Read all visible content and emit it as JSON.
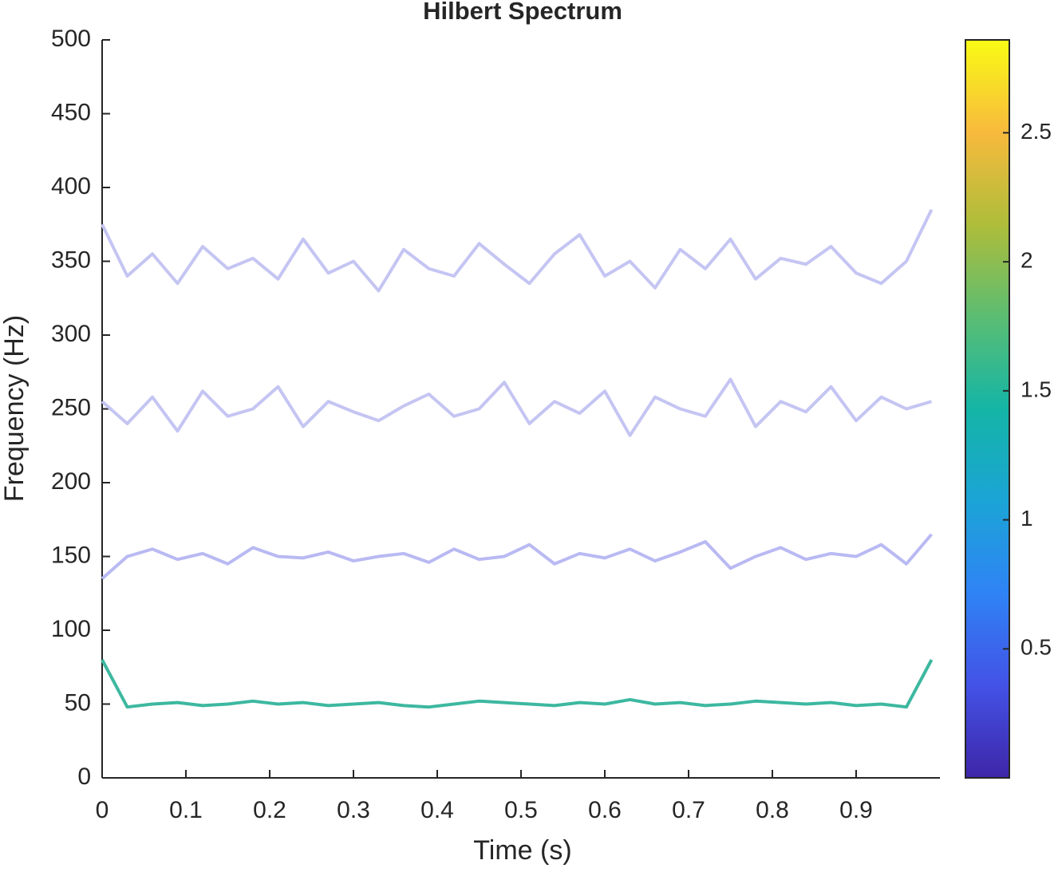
{
  "chart_data": {
    "type": "line",
    "title": "Hilbert Spectrum",
    "xlabel": "Time (s)",
    "ylabel": "Frequency (Hz)",
    "x": [
      0,
      0.03,
      0.06,
      0.09,
      0.12,
      0.15,
      0.18,
      0.21,
      0.24,
      0.27,
      0.3,
      0.33,
      0.36,
      0.39,
      0.42,
      0.45,
      0.48,
      0.51,
      0.54,
      0.57,
      0.6,
      0.63,
      0.66,
      0.69,
      0.72,
      0.75,
      0.78,
      0.81,
      0.84,
      0.87,
      0.9,
      0.93,
      0.96,
      0.99
    ],
    "series": [
      {
        "color": "#c5c5f3",
        "values": [
          375,
          340,
          355,
          335,
          360,
          345,
          352,
          338,
          365,
          342,
          350,
          330,
          358,
          345,
          340,
          362,
          348,
          335,
          355,
          368,
          340,
          350,
          332,
          358,
          345,
          365,
          338,
          352,
          348,
          360,
          342,
          335,
          350,
          385
        ]
      },
      {
        "color": "#c5c5f3",
        "values": [
          255,
          240,
          258,
          235,
          262,
          245,
          250,
          265,
          238,
          255,
          248,
          242,
          252,
          260,
          245,
          250,
          268,
          240,
          255,
          247,
          262,
          232,
          258,
          250,
          245,
          270,
          238,
          255,
          248,
          265,
          242,
          258,
          250,
          255
        ]
      },
      {
        "color": "#b9b9f3",
        "values": [
          135,
          150,
          155,
          148,
          152,
          145,
          156,
          150,
          149,
          153,
          147,
          150,
          152,
          146,
          155,
          148,
          150,
          158,
          145,
          152,
          149,
          155,
          147,
          153,
          160,
          142,
          150,
          156,
          148,
          152,
          150,
          158,
          145,
          165
        ]
      },
      {
        "color": "#3db8a0",
        "values": [
          80,
          48,
          50,
          51,
          49,
          50,
          52,
          50,
          51,
          49,
          50,
          51,
          49,
          48,
          50,
          52,
          51,
          50,
          49,
          51,
          50,
          53,
          50,
          51,
          49,
          50,
          52,
          51,
          50,
          51,
          49,
          50,
          48,
          80
        ]
      }
    ],
    "xlim": [
      0,
      1
    ],
    "xticks": [
      0,
      0.1,
      0.2,
      0.3,
      0.4,
      0.5,
      0.6,
      0.7,
      0.8,
      0.9
    ],
    "ylim": [
      0,
      500
    ],
    "yticks": [
      0,
      50,
      100,
      150,
      200,
      250,
      300,
      350,
      400,
      450,
      500
    ],
    "colorbar": {
      "lim": [
        0,
        2.86
      ],
      "ticks": [
        0.5,
        1,
        1.5,
        2,
        2.5
      ],
      "colormap": [
        "#3e26a8",
        "#4352e6",
        "#2f83f5",
        "#1ba4d6",
        "#14b5a6",
        "#5bbd72",
        "#aebd3a",
        "#f8ba3d",
        "#f9fb15"
      ]
    }
  }
}
